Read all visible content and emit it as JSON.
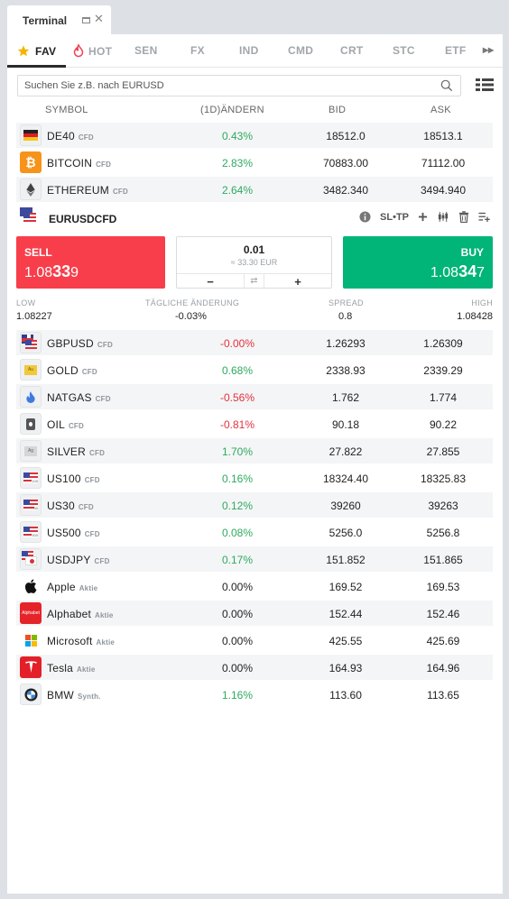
{
  "window": {
    "title": "Terminal"
  },
  "categories": [
    {
      "label": "FAV",
      "icon": "star-icon",
      "active": true
    },
    {
      "label": "HOT",
      "icon": "flame-icon",
      "active": false
    },
    {
      "label": "SEN",
      "active": false
    },
    {
      "label": "FX",
      "active": false
    },
    {
      "label": "IND",
      "active": false
    },
    {
      "label": "CMD",
      "active": false
    },
    {
      "label": "CRT",
      "active": false
    },
    {
      "label": "STC",
      "active": false
    },
    {
      "label": "ETF",
      "active": false
    }
  ],
  "more": "▸▸",
  "search": {
    "placeholder": "Suchen Sie z.B. nach EURUSD",
    "value": ""
  },
  "columns": {
    "symbol": "SYMBOL",
    "change": "(1D)ÄNDERN",
    "bid": "BID",
    "ask": "ASK"
  },
  "rows_top": [
    {
      "symbol": "DE40",
      "type": "CFD",
      "change": "0.43%",
      "dir": "pos",
      "bid": "18512.0",
      "ask": "18513.1",
      "icon": "germany-flag-icon"
    },
    {
      "symbol": "BITCOIN",
      "type": "CFD",
      "change": "2.83%",
      "dir": "pos",
      "bid": "70883.00",
      "ask": "71112.00",
      "icon": "bitcoin-icon"
    },
    {
      "symbol": "ETHEREUM",
      "type": "CFD",
      "change": "2.64%",
      "dir": "pos",
      "bid": "3482.340",
      "ask": "3494.940",
      "icon": "ethereum-icon"
    }
  ],
  "expanded": {
    "symbol": "EURUSD",
    "type": "CFD",
    "icon": "eu-us-flag-icon",
    "sltp": "SL•TP",
    "sell": {
      "label": "SELL",
      "price_main": "1.08",
      "price_big": "33",
      "price_end": "9"
    },
    "buy": {
      "label": "BUY",
      "price_main": "1.08",
      "price_big": "34",
      "price_end": "7"
    },
    "quantity": {
      "value": "0.01",
      "equiv": "≈ 33.30 EUR",
      "minus": "−",
      "plus": "+",
      "swap": "⇄"
    },
    "stats": {
      "low_label": "LOW",
      "low": "1.08227",
      "change_label": "TÄGLICHE ÄNDERUNG",
      "change": "-0.03%",
      "spread_label": "SPREAD",
      "spread": "0.8",
      "high_label": "HIGH",
      "high": "1.08428"
    }
  },
  "rows_bottom": [
    {
      "symbol": "GBPUSD",
      "type": "CFD",
      "change": "-0.00%",
      "dir": "neg",
      "bid": "1.26293",
      "ask": "1.26309",
      "icon": "gb-us-flag-icon"
    },
    {
      "symbol": "GOLD",
      "type": "CFD",
      "change": "0.68%",
      "dir": "pos",
      "bid": "2338.93",
      "ask": "2339.29",
      "icon": "gold-icon"
    },
    {
      "symbol": "NATGAS",
      "type": "CFD",
      "change": "-0.56%",
      "dir": "neg",
      "bid": "1.762",
      "ask": "1.774",
      "icon": "gas-flame-icon"
    },
    {
      "symbol": "OIL",
      "type": "CFD",
      "change": "-0.81%",
      "dir": "neg",
      "bid": "90.18",
      "ask": "90.22",
      "icon": "oil-drop-icon"
    },
    {
      "symbol": "SILVER",
      "type": "CFD",
      "change": "1.70%",
      "dir": "pos",
      "bid": "27.822",
      "ask": "27.855",
      "icon": "silver-icon"
    },
    {
      "symbol": "US100",
      "type": "CFD",
      "change": "0.16%",
      "dir": "pos",
      "bid": "18324.40",
      "ask": "18325.83",
      "icon": "us-flag-icon",
      "badge": "100"
    },
    {
      "symbol": "US30",
      "type": "CFD",
      "change": "0.12%",
      "dir": "pos",
      "bid": "39260",
      "ask": "39263",
      "icon": "us-flag-icon",
      "badge": "30"
    },
    {
      "symbol": "US500",
      "type": "CFD",
      "change": "0.08%",
      "dir": "pos",
      "bid": "5256.0",
      "ask": "5256.8",
      "icon": "us-flag-icon",
      "badge": "500"
    },
    {
      "symbol": "USDJPY",
      "type": "CFD",
      "change": "0.17%",
      "dir": "pos",
      "bid": "151.852",
      "ask": "151.865",
      "icon": "us-jp-flag-icon"
    },
    {
      "symbol": "Apple",
      "type": "Aktie",
      "change": "0.00%",
      "dir": "neu",
      "bid": "169.52",
      "ask": "169.53",
      "icon": "apple-icon"
    },
    {
      "symbol": "Alphabet",
      "type": "Aktie",
      "change": "0.00%",
      "dir": "neu",
      "bid": "152.44",
      "ask": "152.46",
      "icon": "alphabet-icon",
      "logo_text": "Alphabet"
    },
    {
      "symbol": "Microsoft",
      "type": "Aktie",
      "change": "0.00%",
      "dir": "neu",
      "bid": "425.55",
      "ask": "425.69",
      "icon": "microsoft-icon"
    },
    {
      "symbol": "Tesla",
      "type": "Aktie",
      "change": "0.00%",
      "dir": "neu",
      "bid": "164.93",
      "ask": "164.96",
      "icon": "tesla-icon"
    },
    {
      "symbol": "BMW",
      "type": "Synth.",
      "change": "1.16%",
      "dir": "pos",
      "bid": "113.60",
      "ask": "113.65",
      "icon": "bmw-icon"
    }
  ],
  "colors": {
    "sell": "#f83e4b",
    "buy": "#01b477",
    "positive": "#2eaa5f",
    "negative": "#e3323d"
  }
}
